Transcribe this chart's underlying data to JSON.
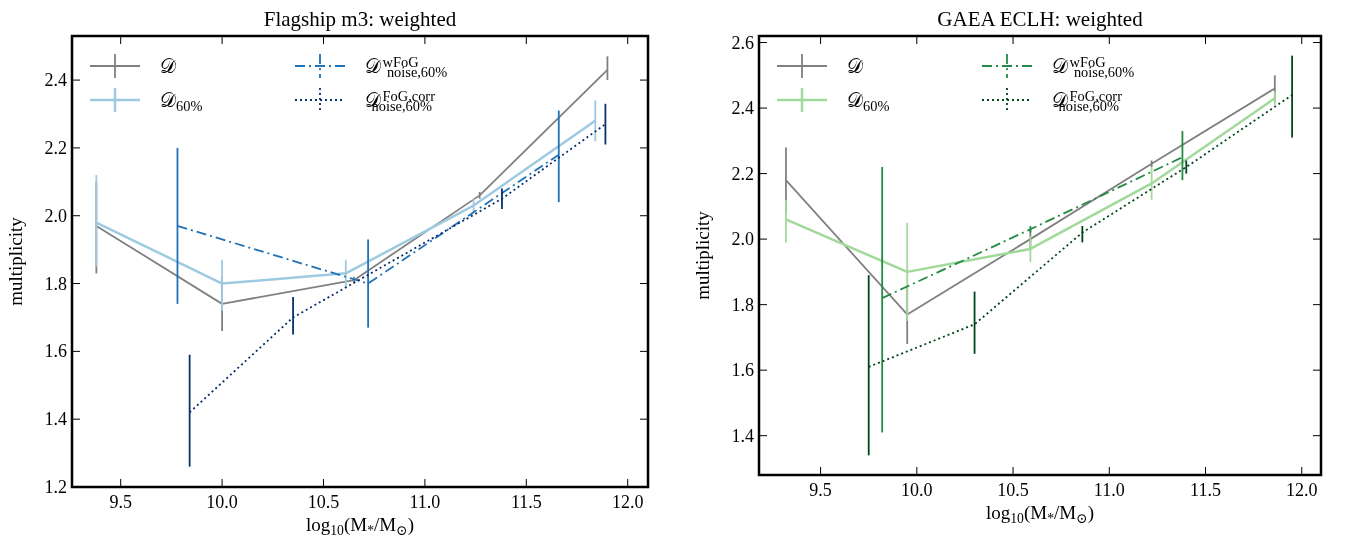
{
  "chart_data": [
    {
      "type": "line",
      "title": "Flagship m3: weighted",
      "xlabel": "log$_{10}$(M$_{*}$/M$_{⊙}$)",
      "ylabel": "multiplicity",
      "xlim": [
        9.26,
        12.1
      ],
      "ylim": [
        1.2,
        2.53
      ],
      "xticks": [
        {
          "value": 9.5,
          "label": "9.5"
        },
        {
          "value": 10,
          "label": "10.0"
        },
        {
          "value": 10.5,
          "label": "10.5"
        },
        {
          "value": 11,
          "label": "11.0"
        },
        {
          "value": 11.5,
          "label": "11.5"
        },
        {
          "value": 12,
          "label": "12.0"
        }
      ],
      "yticks": [
        1.2,
        1.4,
        1.6,
        1.8,
        {
          "value": 2,
          "label": "2.0"
        },
        2.2,
        2.4
      ],
      "legend": "top left",
      "grid": false,
      "marker": "none",
      "series": [
        {
          "name": "𝒟",
          "color": "#808080",
          "line_style": "solid",
          "x": [
            9.38,
            10.0,
            10.65,
            11.27,
            11.9
          ],
          "values": [
            1.97,
            1.74,
            1.81,
            2.06,
            2.43
          ],
          "errors": [
            [
              1.83,
              2.1
            ],
            [
              1.66,
              1.82
            ],
            [
              1.8,
              1.82
            ],
            [
              2.05,
              2.07
            ],
            [
              2.4,
              2.47
            ]
          ]
        },
        {
          "name": "𝒟$_{60%}$",
          "color": "#9ecae1",
          "line_style": "solid",
          "x": [
            9.38,
            10.0,
            10.61,
            11.24,
            11.84
          ],
          "values": [
            1.98,
            1.8,
            1.83,
            2.03,
            2.28
          ],
          "errors": [
            [
              1.85,
              2.12
            ],
            [
              1.72,
              1.87
            ],
            [
              1.79,
              1.87
            ],
            [
              2.01,
              2.05
            ],
            [
              2.22,
              2.34
            ]
          ]
        },
        {
          "name": "𝒟$^{wFoG}$$_{noise,60%}$",
          "color": "#2171b5",
          "line_style": "dashdot",
          "x": [
            9.78,
            10.72,
            11.66
          ],
          "values": [
            1.97,
            1.8,
            2.18
          ],
          "errors": [
            [
              1.74,
              2.2
            ],
            [
              1.67,
              1.93
            ],
            [
              2.04,
              2.31
            ]
          ]
        },
        {
          "name": "𝒟$^{FoG,corr}$$_{noise,60%}$",
          "color": "#08306b",
          "line_style": "dotted",
          "x": [
            9.84,
            10.35,
            11.38,
            11.89
          ],
          "values": [
            1.42,
            1.7,
            2.05,
            2.27
          ],
          "errors": [
            [
              1.26,
              1.59
            ],
            [
              1.65,
              1.76
            ],
            [
              2.02,
              2.08
            ],
            [
              2.21,
              2.33
            ]
          ]
        }
      ]
    },
    {
      "type": "line",
      "title": "GAEA ECLH: weighted",
      "xlabel": "log$_{10}$(M$_{*}$/M$_{⊙}$)",
      "ylabel": "multiplicity",
      "xlim": [
        9.18,
        12.1
      ],
      "ylim": [
        1.28,
        2.62
      ],
      "xticks": [
        {
          "value": 9.5,
          "label": "9.5"
        },
        {
          "value": 10,
          "label": "10.0"
        },
        {
          "value": 10.5,
          "label": "10.5"
        },
        {
          "value": 11,
          "label": "11.0"
        },
        {
          "value": 11.5,
          "label": "11.5"
        },
        {
          "value": 12,
          "label": "12.0"
        }
      ],
      "yticks": [
        1.4,
        1.6,
        1.8,
        {
          "value": 2,
          "label": "2.0"
        },
        2.2,
        2.4,
        2.6
      ],
      "legend": "top left",
      "grid": false,
      "marker": "none",
      "series": [
        {
          "name": "𝒟",
          "color": "#808080",
          "line_style": "solid",
          "x": [
            9.32,
            9.95,
            10.59,
            11.22,
            11.86
          ],
          "values": [
            2.18,
            1.77,
            2.0,
            2.23,
            2.46
          ],
          "errors": [
            [
              2.08,
              2.28
            ],
            [
              1.68,
              1.86
            ],
            [
              1.97,
              2.03
            ],
            [
              2.22,
              2.24
            ],
            [
              2.42,
              2.5
            ]
          ]
        },
        {
          "name": "𝒟$_{60%}$",
          "color": "#a1d99b",
          "line_style": "solid",
          "x": [
            9.32,
            9.95,
            10.59,
            11.22,
            11.86
          ],
          "values": [
            2.06,
            1.9,
            1.97,
            2.17,
            2.43
          ],
          "errors": [
            [
              1.99,
              2.12
            ],
            [
              1.75,
              2.05
            ],
            [
              1.93,
              2.01
            ],
            [
              2.12,
              2.22
            ],
            [
              2.41,
              2.45
            ]
          ]
        },
        {
          "name": "𝒟$^{wFoG}$$_{noise,60%}$",
          "color": "#238b45",
          "line_style": "dashdot",
          "x": [
            9.82,
            10.59,
            11.38
          ],
          "values": [
            1.82,
            2.03,
            2.25
          ],
          "errors": [
            [
              1.41,
              2.22
            ],
            [
              2.02,
              2.04
            ],
            [
              2.18,
              2.33
            ]
          ]
        },
        {
          "name": "𝒟$^{FoG,corr}$$_{noise,60%}$",
          "color": "#00441b",
          "line_style": "dotted",
          "x": [
            9.75,
            10.3,
            10.86,
            11.4,
            11.95
          ],
          "values": [
            1.61,
            1.74,
            2.02,
            2.22,
            2.44
          ],
          "errors": [
            [
              1.34,
              1.89
            ],
            [
              1.65,
              1.84
            ],
            [
              1.99,
              2.04
            ],
            [
              2.2,
              2.24
            ],
            [
              2.31,
              2.56
            ]
          ]
        }
      ]
    }
  ]
}
